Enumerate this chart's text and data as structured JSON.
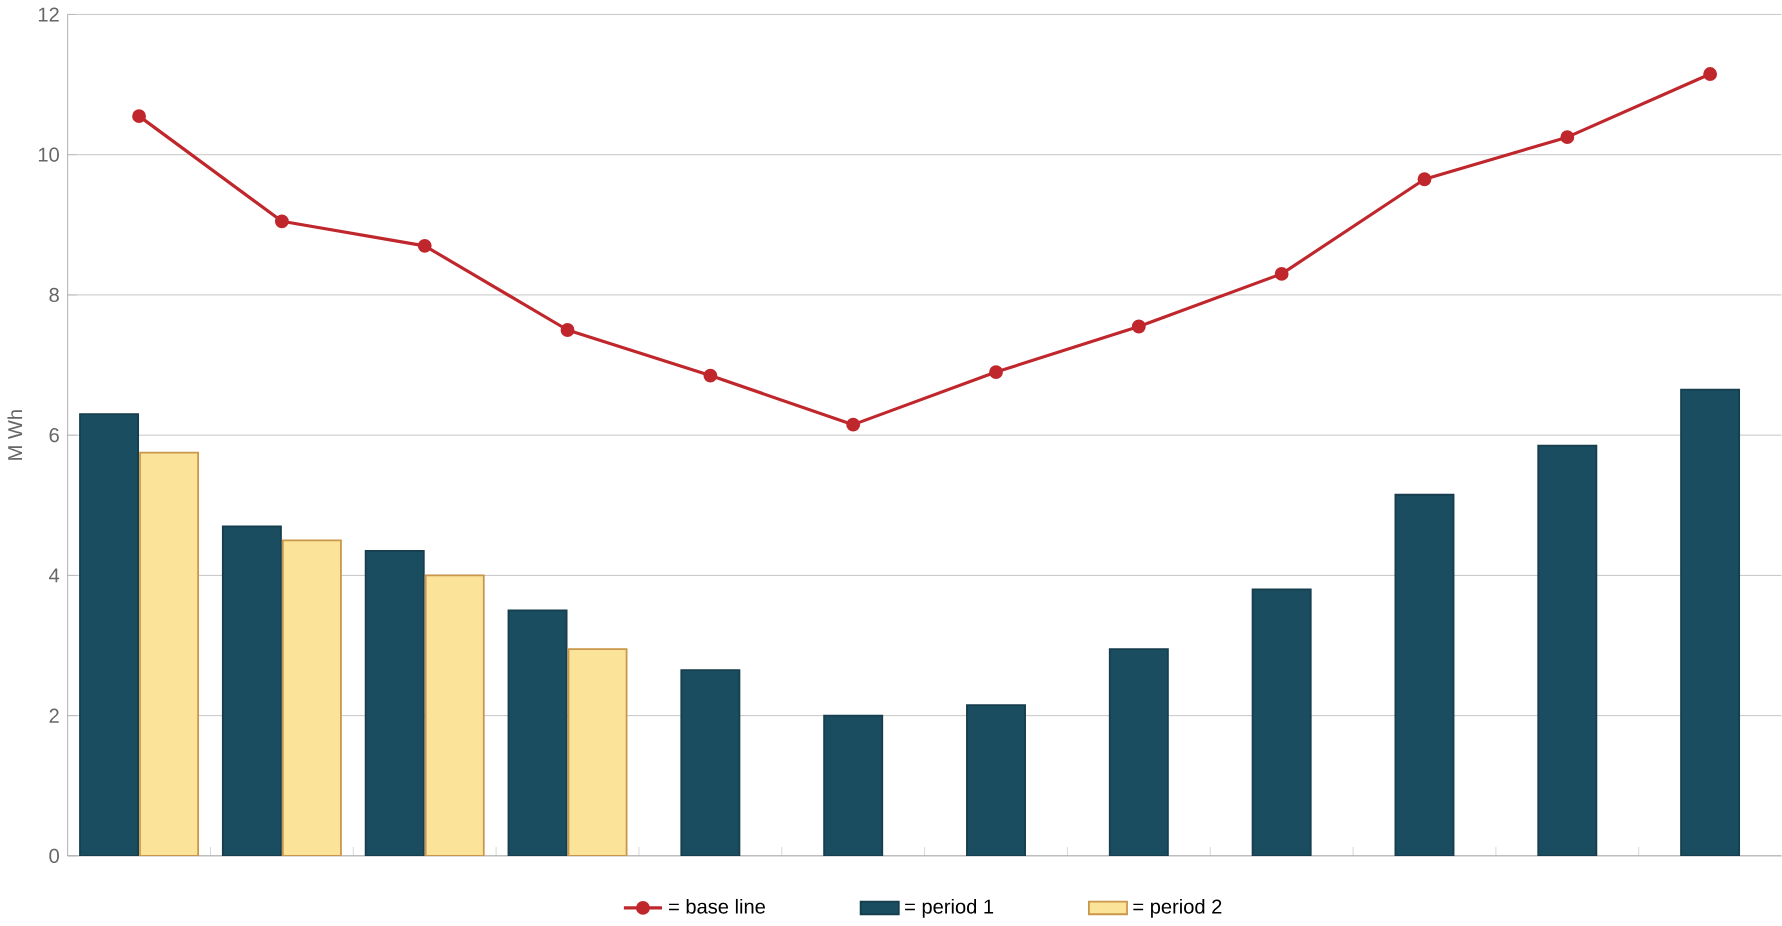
{
  "chart_data": {
    "type": "bar",
    "ylabel": "M Wh",
    "categories": [
      null,
      null,
      null,
      null,
      null,
      null,
      null,
      null,
      null,
      null,
      null,
      null
    ],
    "ylim": [
      0,
      12
    ],
    "yticks": [
      0,
      2,
      4,
      6,
      8,
      10,
      12
    ],
    "grid": "y",
    "legend": "bottom",
    "series": [
      {
        "name": "= base line",
        "type": "line",
        "color": "#c0272d",
        "marker": "circle",
        "values": [
          10.55,
          9.05,
          8.7,
          7.5,
          6.85,
          6.15,
          6.9,
          7.55,
          8.3,
          9.65,
          10.25,
          11.15
        ]
      },
      {
        "name": "= period 1",
        "color": "#1b4d61",
        "values": [
          6.3,
          4.7,
          4.35,
          3.5,
          2.65,
          2.0,
          2.15,
          2.95,
          3.8,
          5.15,
          5.85,
          6.65
        ]
      },
      {
        "name": "= period 2",
        "color": "#fbe49a",
        "values": [
          5.75,
          4.5,
          4.0,
          2.95,
          null,
          null,
          null,
          null,
          null,
          null,
          null,
          null
        ]
      }
    ]
  }
}
